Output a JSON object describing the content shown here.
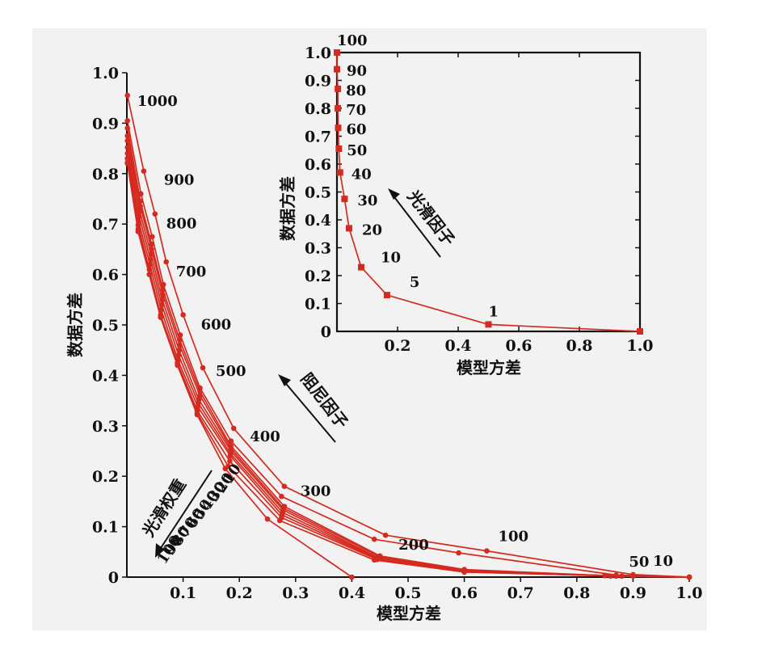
{
  "colors": {
    "series": "#d42a1f",
    "axis": "#111111",
    "panel": "#f2f2f2"
  },
  "chart_data": [
    {
      "type": "line",
      "xlabel": "模型方差",
      "ylabel": "数据方差",
      "xlim": [
        0,
        1.0
      ],
      "ylim": [
        0,
        1.0
      ],
      "xticks": [
        "0.1",
        "0.2",
        "0.3",
        "0.4",
        "0.5",
        "0.6",
        "0.7",
        "0.8",
        "0.9",
        "1.0"
      ],
      "yticks": [
        "0",
        "0.1",
        "0.2",
        "0.3",
        "0.4",
        "0.5",
        "0.6",
        "0.7",
        "0.8",
        "0.9",
        "1.0"
      ],
      "damping_point_labels": [
        "1000",
        "900",
        "800",
        "700",
        "600",
        "500",
        "400",
        "300",
        "200",
        "100",
        "50",
        "10"
      ],
      "smooth_weight_labels": [
        "1",
        "2",
        "3",
        "4",
        "5",
        "6",
        "7",
        "8",
        "9",
        "10"
      ],
      "smooth_weight_labels_suffix": "0",
      "annotations": [
        {
          "text": "阻尼因子",
          "arrow": "up-left"
        },
        {
          "text": "光滑权重",
          "arrow": "down-left"
        }
      ],
      "series": [
        {
          "values": [
            [
              0.001,
              0.955
            ],
            [
              0.03,
              0.805
            ],
            [
              0.05,
              0.72
            ],
            [
              0.07,
              0.625
            ],
            [
              0.1,
              0.52
            ],
            [
              0.135,
              0.415
            ],
            [
              0.19,
              0.295
            ],
            [
              0.28,
              0.18
            ],
            [
              0.46,
              0.083
            ],
            [
              0.64,
              0.052
            ],
            [
              0.9,
              0.005
            ],
            [
              1.0,
              0.0
            ]
          ]
        },
        {
          "values": [
            [
              0.001,
              0.905
            ],
            [
              0.025,
              0.76
            ],
            [
              0.045,
              0.675
            ],
            [
              0.065,
              0.58
            ],
            [
              0.095,
              0.48
            ],
            [
              0.13,
              0.375
            ],
            [
              0.185,
              0.27
            ],
            [
              0.275,
              0.16
            ],
            [
              0.44,
              0.075
            ],
            [
              0.59,
              0.048
            ],
            [
              0.87,
              0.004
            ],
            [
              1.0,
              0.0
            ]
          ]
        },
        {
          "values": [
            [
              0.001,
              0.89
            ],
            [
              0.024,
              0.745
            ],
            [
              0.044,
              0.66
            ],
            [
              0.064,
              0.57
            ],
            [
              0.094,
              0.47
            ],
            [
              0.13,
              0.368
            ],
            [
              0.185,
              0.26
            ],
            [
              0.28,
              0.14
            ],
            [
              0.45,
              0.042
            ],
            [
              0.6,
              0.015
            ],
            [
              0.85,
              0.003
            ],
            [
              1.0,
              0.0
            ]
          ]
        },
        {
          "values": [
            [
              0.001,
              0.875
            ],
            [
              0.024,
              0.735
            ],
            [
              0.044,
              0.65
            ],
            [
              0.064,
              0.56
            ],
            [
              0.094,
              0.46
            ],
            [
              0.13,
              0.36
            ],
            [
              0.185,
              0.255
            ],
            [
              0.278,
              0.137
            ],
            [
              0.45,
              0.04
            ],
            [
              0.6,
              0.013
            ],
            [
              0.85,
              0.003
            ],
            [
              1.0,
              0.0
            ]
          ]
        },
        {
          "values": [
            [
              0.001,
              0.865
            ],
            [
              0.023,
              0.725
            ],
            [
              0.043,
              0.64
            ],
            [
              0.063,
              0.55
            ],
            [
              0.093,
              0.45
            ],
            [
              0.128,
              0.352
            ],
            [
              0.185,
              0.25
            ],
            [
              0.278,
              0.133
            ],
            [
              0.448,
              0.038
            ],
            [
              0.6,
              0.012
            ],
            [
              0.85,
              0.003
            ],
            [
              1.0,
              0.0
            ]
          ]
        },
        {
          "values": [
            [
              0.001,
              0.852
            ],
            [
              0.022,
              0.715
            ],
            [
              0.042,
              0.63
            ],
            [
              0.062,
              0.54
            ],
            [
              0.092,
              0.44
            ],
            [
              0.127,
              0.345
            ],
            [
              0.184,
              0.245
            ],
            [
              0.277,
              0.128
            ],
            [
              0.447,
              0.037
            ],
            [
              0.6,
              0.011
            ],
            [
              0.86,
              0.002
            ],
            [
              1.0,
              0.0
            ]
          ]
        },
        {
          "values": [
            [
              0.001,
              0.84
            ],
            [
              0.021,
              0.705
            ],
            [
              0.041,
              0.62
            ],
            [
              0.061,
              0.53
            ],
            [
              0.091,
              0.43
            ],
            [
              0.126,
              0.338
            ],
            [
              0.184,
              0.24
            ],
            [
              0.276,
              0.123
            ],
            [
              0.446,
              0.036
            ],
            [
              0.6,
              0.011
            ],
            [
              0.87,
              0.002
            ],
            [
              1.0,
              0.0
            ]
          ]
        },
        {
          "values": [
            [
              0.001,
              0.83
            ],
            [
              0.02,
              0.698
            ],
            [
              0.04,
              0.61
            ],
            [
              0.06,
              0.52
            ],
            [
              0.09,
              0.425
            ],
            [
              0.125,
              0.33
            ],
            [
              0.183,
              0.23
            ],
            [
              0.275,
              0.118
            ],
            [
              0.445,
              0.035
            ],
            [
              0.6,
              0.01
            ],
            [
              0.88,
              0.002
            ],
            [
              1.0,
              0.0
            ]
          ]
        },
        {
          "values": [
            [
              0.001,
              0.822
            ],
            [
              0.02,
              0.69
            ],
            [
              0.04,
              0.6
            ],
            [
              0.06,
              0.515
            ],
            [
              0.09,
              0.42
            ],
            [
              0.125,
              0.325
            ],
            [
              0.18,
              0.22
            ],
            [
              0.272,
              0.112
            ],
            [
              0.44,
              0.034
            ],
            [
              0.6,
              0.01
            ],
            [
              0.9,
              0.002
            ],
            [
              1.0,
              0.0
            ]
          ]
        },
        {
          "values": [
            [
              0.001,
              0.82
            ],
            [
              0.02,
              0.685
            ],
            [
              0.04,
              0.6
            ],
            [
              0.06,
              0.515
            ],
            [
              0.09,
              0.42
            ],
            [
              0.125,
              0.322
            ],
            [
              0.175,
              0.215
            ],
            [
              0.25,
              0.115
            ],
            [
              0.4,
              0.0
            ]
          ]
        }
      ]
    },
    {
      "type": "line",
      "xlabel": "模型方差",
      "ylabel": "数据方差",
      "xlim": [
        0,
        1.0
      ],
      "ylim": [
        0,
        1.0
      ],
      "xticks": [
        "0.2",
        "0.4",
        "0.6",
        "0.8",
        "1.0"
      ],
      "yticks": [
        "0",
        "0.1",
        "0.2",
        "0.3",
        "0.4",
        "0.5",
        "0.6",
        "0.7",
        "0.8",
        "0.9",
        "1.0"
      ],
      "point_labels": [
        "100",
        "90",
        "80",
        "70",
        "60",
        "50",
        "40",
        "30",
        "20",
        "10",
        "5",
        "1"
      ],
      "annotations": [
        {
          "text": "光滑因子",
          "arrow": "up-left"
        }
      ],
      "series": [
        {
          "values": [
            [
              0.0,
              1.0
            ],
            [
              0.0,
              0.94
            ],
            [
              0.003,
              0.87
            ],
            [
              0.003,
              0.8
            ],
            [
              0.004,
              0.73
            ],
            [
              0.006,
              0.655
            ],
            [
              0.01,
              0.57
            ],
            [
              0.025,
              0.475
            ],
            [
              0.04,
              0.37
            ],
            [
              0.08,
              0.23
            ],
            [
              0.165,
              0.13
            ],
            [
              0.5,
              0.025
            ],
            [
              1.0,
              0.0
            ]
          ]
        }
      ]
    }
  ]
}
